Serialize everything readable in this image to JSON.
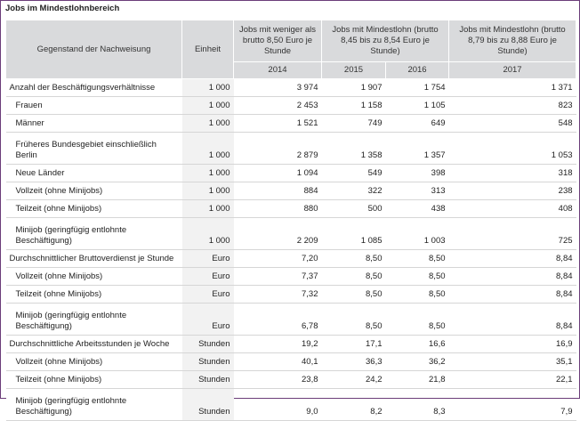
{
  "title": "Jobs im Mindestlohnbereich",
  "header": {
    "subject": "Gegenstand der Nachweisung",
    "unit": "Einheit",
    "group1": "Jobs mit weniger als brutto 8,50 Euro je Stunde",
    "group2": "Jobs mit Mindestlohn (brutto 8,45 bis zu 8,54 Euro je Stunde)",
    "group3": "Jobs mit Mindestlohn (brutto 8,79 bis zu 8,88 Euro je Stunde)",
    "years": [
      "2014",
      "2015",
      "2016",
      "2017"
    ]
  },
  "rows": [
    {
      "label": "Anzahl der Beschäftigungsverhältnisse",
      "unit": "1 000",
      "v": [
        "3 974",
        "1 907",
        "1 754",
        "1 371"
      ]
    },
    {
      "label": "Frauen",
      "unit": "1 000",
      "v": [
        "2 453",
        "1 158",
        "1 105",
        "823"
      ]
    },
    {
      "label": "Männer",
      "unit": "1 000",
      "v": [
        "1 521",
        "749",
        "649",
        "548"
      ]
    },
    {
      "label": "Früheres Bundesgebiet einschließlich Berlin",
      "unit": "1 000",
      "v": [
        "2 879",
        "1 358",
        "1 357",
        "1 053"
      ]
    },
    {
      "label": "Neue Länder",
      "unit": "1 000",
      "v": [
        "1 094",
        "549",
        "398",
        "318"
      ]
    },
    {
      "label": "Vollzeit (ohne Minijobs)",
      "unit": "1 000",
      "v": [
        "884",
        "322",
        "313",
        "238"
      ]
    },
    {
      "label": "Teilzeit (ohne Minijobs)",
      "unit": "1 000",
      "v": [
        "880",
        "500",
        "438",
        "408"
      ]
    },
    {
      "label": "Minijob (geringfügig entlohnte Beschäftigung)",
      "unit": "1 000",
      "v": [
        "2 209",
        "1 085",
        "1 003",
        "725"
      ]
    },
    {
      "label": "Durchschnittlicher Bruttoverdienst je Stunde",
      "unit": "Euro",
      "v": [
        "7,20",
        "8,50",
        "8,50",
        "8,84"
      ]
    },
    {
      "label": "Vollzeit (ohne Minijobs)",
      "unit": "Euro",
      "v": [
        "7,37",
        "8,50",
        "8,50",
        "8,84"
      ]
    },
    {
      "label": "Teilzeit (ohne Minijobs)",
      "unit": "Euro",
      "v": [
        "7,32",
        "8,50",
        "8,50",
        "8,84"
      ]
    },
    {
      "label": "Minijob (geringfügig entlohnte Beschäftigung)",
      "unit": "Euro",
      "v": [
        "6,78",
        "8,50",
        "8,50",
        "8,84"
      ]
    },
    {
      "label": "Durchschnittliche Arbeitsstunden je Woche",
      "unit": "Stunden",
      "v": [
        "19,2",
        "17,1",
        "16,6",
        "16,9"
      ]
    },
    {
      "label": "Vollzeit (ohne Minijobs)",
      "unit": "Stunden",
      "v": [
        "40,1",
        "36,3",
        "36,2",
        "35,1"
      ]
    },
    {
      "label": "Teilzeit (ohne Minijobs)",
      "unit": "Stunden",
      "v": [
        "23,8",
        "24,2",
        "21,8",
        "22,1"
      ]
    },
    {
      "label": "Minijob (geringfügig entlohnte Beschäftigung)",
      "unit": "Stunden",
      "v": [
        "9,0",
        "8,2",
        "8,3",
        "7,9"
      ]
    }
  ]
}
